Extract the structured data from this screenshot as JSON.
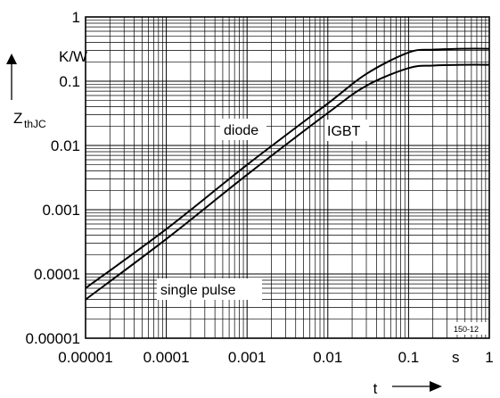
{
  "chart_data": {
    "type": "line",
    "x_scale": "log",
    "y_scale": "log",
    "xlim": [
      1e-05,
      1
    ],
    "ylim": [
      1e-05,
      1
    ],
    "grid": true,
    "x_ticks": [
      "0.00001",
      "0.0001",
      "0.001",
      "0.01",
      "0.1",
      "1"
    ],
    "y_ticks": [
      "0.00001",
      "0.0001",
      "0.001",
      "0.01",
      "0.1",
      "1"
    ],
    "x_unit": "s",
    "y_unit": "K/W",
    "xlabel": "t",
    "ylabel_main": "Z",
    "ylabel_sub": "thJC",
    "annotation": "single pulse",
    "code": "150-12",
    "series": [
      {
        "name": "diode",
        "x": [
          1e-05,
          0.0001,
          0.001,
          0.01,
          0.03,
          0.1,
          0.2,
          0.5,
          1
        ],
        "y": [
          6e-05,
          0.0005,
          0.005,
          0.045,
          0.13,
          0.28,
          0.31,
          0.32,
          0.32
        ]
      },
      {
        "name": "IGBT",
        "x": [
          1e-05,
          0.0001,
          0.001,
          0.01,
          0.03,
          0.1,
          0.2,
          0.5,
          1
        ],
        "y": [
          4e-05,
          0.00035,
          0.0035,
          0.032,
          0.085,
          0.16,
          0.175,
          0.18,
          0.18
        ]
      }
    ]
  }
}
